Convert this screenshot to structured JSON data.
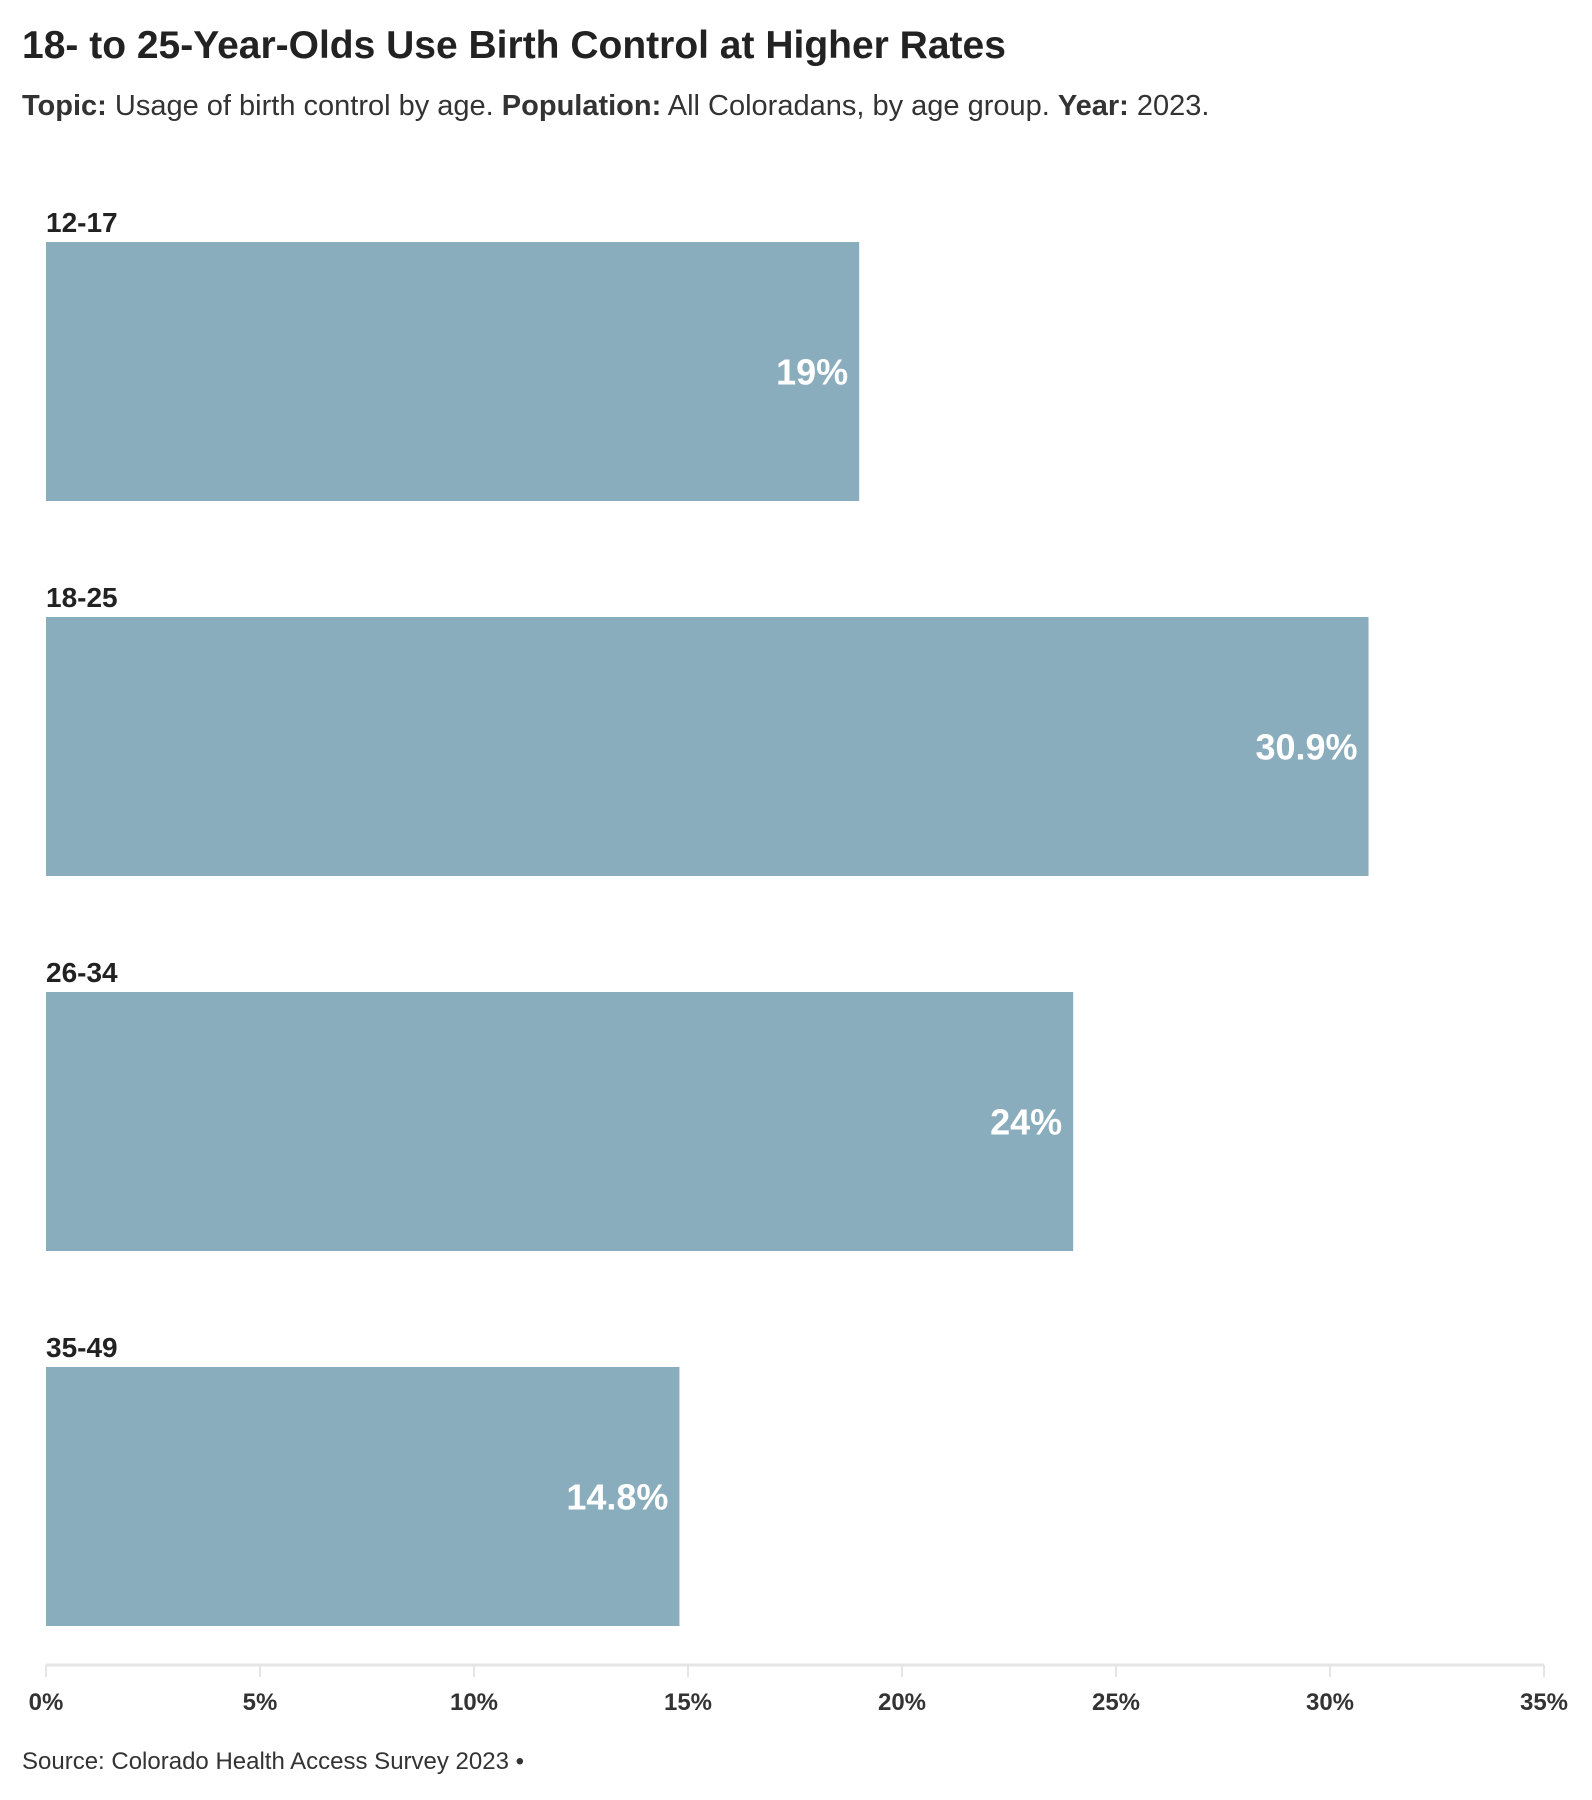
{
  "header": {
    "title": "18- to 25-Year-Olds Use Birth Control at Higher Rates",
    "topic_label": "Topic:",
    "topic_value": "Usage of birth control by age.",
    "population_label": "Population:",
    "population_value": "All Coloradans, by age group.",
    "year_label": "Year:",
    "year_value": "2023."
  },
  "footer": {
    "source": "Source: Colorado Health Access Survey 2023 •"
  },
  "colors": {
    "bar": "#89adbd",
    "bar_label": "#ffffff",
    "category_label": "#222222",
    "axis": "#e5e5e5"
  },
  "chart_data": {
    "type": "bar",
    "orientation": "horizontal",
    "categories": [
      "12-17",
      "18-25",
      "26-34",
      "35-49"
    ],
    "values": [
      19,
      30.9,
      24,
      14.8
    ],
    "value_labels": [
      "19%",
      "30.9%",
      "24%",
      "14.8%"
    ],
    "xlim": [
      0,
      35
    ],
    "ticks": [
      0,
      5,
      10,
      15,
      20,
      25,
      30,
      35
    ],
    "tick_labels": [
      "0%",
      "5%",
      "10%",
      "15%",
      "20%",
      "25%",
      "30%",
      "35%"
    ],
    "xlabel": "",
    "ylabel": "",
    "grid": false,
    "legend": "none"
  }
}
